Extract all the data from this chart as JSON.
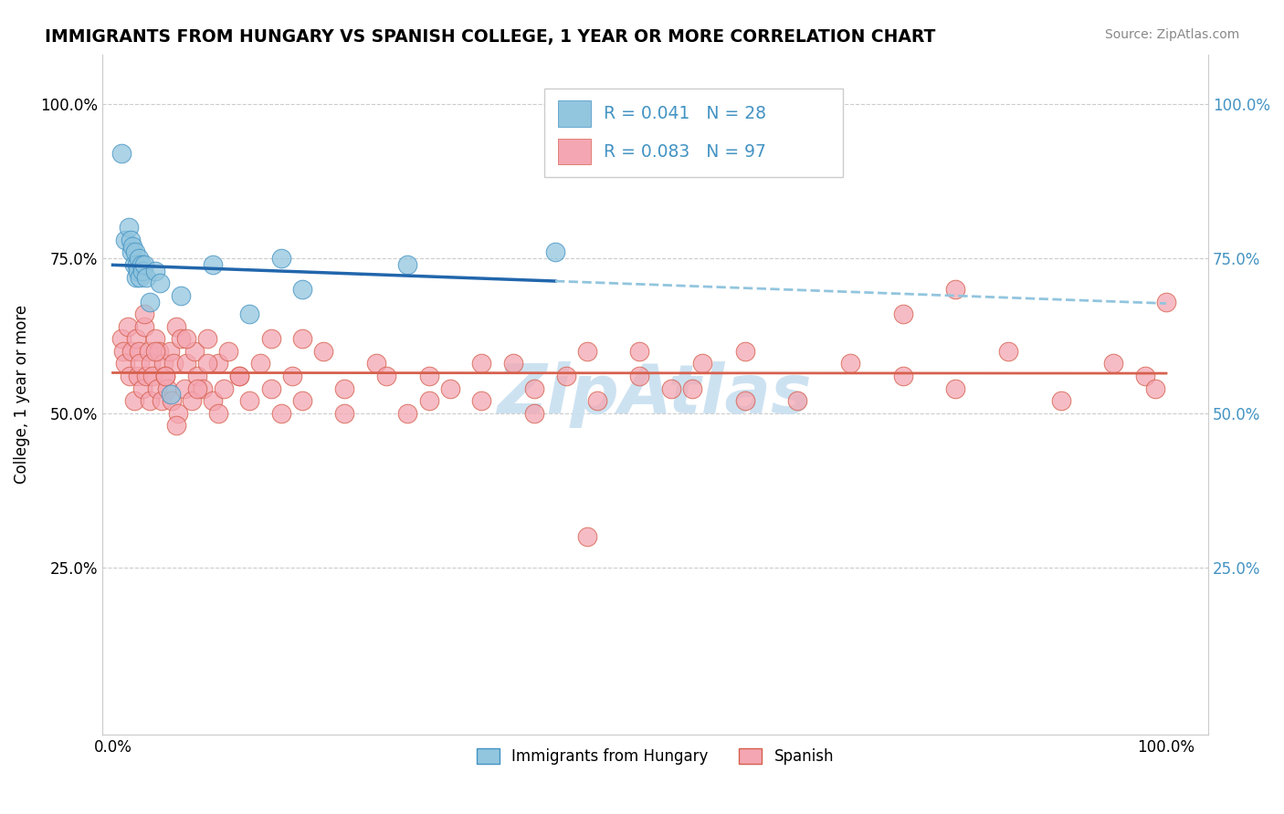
{
  "title": "IMMIGRANTS FROM HUNGARY VS SPANISH COLLEGE, 1 YEAR OR MORE CORRELATION CHART",
  "source_text": "Source: ZipAtlas.com",
  "ylabel": "College, 1 year or more",
  "legend_label1": "Immigrants from Hungary",
  "legend_label2": "Spanish",
  "blue_color": "#92c5de",
  "blue_edge_color": "#4393c3",
  "pink_color": "#f4a6b2",
  "pink_edge_color": "#d6604d",
  "blue_line_color": "#2166ac",
  "pink_line_color": "#d6604d",
  "blue_dashed_color": "#92c5de",
  "legend_text_color": "#4393c3",
  "watermark_color": "#c8dff0",
  "grid_color": "#cccccc",
  "blue_scatter_x": [
    0.008,
    0.012,
    0.015,
    0.017,
    0.018,
    0.019,
    0.02,
    0.021,
    0.022,
    0.023,
    0.024,
    0.025,
    0.026,
    0.027,
    0.028,
    0.03,
    0.032,
    0.035,
    0.04,
    0.045,
    0.055,
    0.095,
    0.13,
    0.16,
    0.28,
    0.42,
    0.18,
    0.065
  ],
  "blue_scatter_y": [
    0.92,
    0.78,
    0.8,
    0.78,
    0.76,
    0.77,
    0.74,
    0.76,
    0.72,
    0.74,
    0.73,
    0.75,
    0.72,
    0.74,
    0.73,
    0.74,
    0.72,
    0.68,
    0.73,
    0.71,
    0.53,
    0.74,
    0.66,
    0.75,
    0.74,
    0.76,
    0.7,
    0.69
  ],
  "pink_scatter_x": [
    0.008,
    0.01,
    0.012,
    0.014,
    0.016,
    0.018,
    0.02,
    0.022,
    0.024,
    0.025,
    0.026,
    0.028,
    0.03,
    0.032,
    0.034,
    0.035,
    0.036,
    0.038,
    0.04,
    0.042,
    0.044,
    0.046,
    0.048,
    0.05,
    0.052,
    0.054,
    0.056,
    0.058,
    0.06,
    0.062,
    0.065,
    0.068,
    0.07,
    0.075,
    0.078,
    0.08,
    0.085,
    0.09,
    0.095,
    0.1,
    0.105,
    0.11,
    0.12,
    0.13,
    0.14,
    0.15,
    0.16,
    0.17,
    0.18,
    0.2,
    0.22,
    0.25,
    0.28,
    0.3,
    0.32,
    0.35,
    0.38,
    0.4,
    0.43,
    0.46,
    0.5,
    0.53,
    0.56,
    0.6,
    0.03,
    0.04,
    0.05,
    0.06,
    0.07,
    0.08,
    0.09,
    0.1,
    0.12,
    0.15,
    0.18,
    0.22,
    0.26,
    0.3,
    0.35,
    0.4,
    0.45,
    0.5,
    0.55,
    0.6,
    0.65,
    0.7,
    0.75,
    0.8,
    0.85,
    0.9,
    0.95,
    0.98,
    0.99,
    1.0,
    0.75,
    0.8,
    0.45
  ],
  "pink_scatter_y": [
    0.62,
    0.6,
    0.58,
    0.64,
    0.56,
    0.6,
    0.52,
    0.62,
    0.56,
    0.6,
    0.58,
    0.54,
    0.64,
    0.56,
    0.6,
    0.52,
    0.58,
    0.56,
    0.62,
    0.54,
    0.6,
    0.52,
    0.58,
    0.56,
    0.54,
    0.6,
    0.52,
    0.58,
    0.64,
    0.5,
    0.62,
    0.54,
    0.58,
    0.52,
    0.6,
    0.56,
    0.54,
    0.62,
    0.52,
    0.58,
    0.54,
    0.6,
    0.56,
    0.52,
    0.58,
    0.62,
    0.5,
    0.56,
    0.52,
    0.6,
    0.54,
    0.58,
    0.5,
    0.56,
    0.54,
    0.52,
    0.58,
    0.5,
    0.56,
    0.52,
    0.6,
    0.54,
    0.58,
    0.52,
    0.66,
    0.6,
    0.56,
    0.48,
    0.62,
    0.54,
    0.58,
    0.5,
    0.56,
    0.54,
    0.62,
    0.5,
    0.56,
    0.52,
    0.58,
    0.54,
    0.6,
    0.56,
    0.54,
    0.6,
    0.52,
    0.58,
    0.56,
    0.54,
    0.6,
    0.52,
    0.58,
    0.56,
    0.54,
    0.68,
    0.66,
    0.7,
    0.3
  ]
}
